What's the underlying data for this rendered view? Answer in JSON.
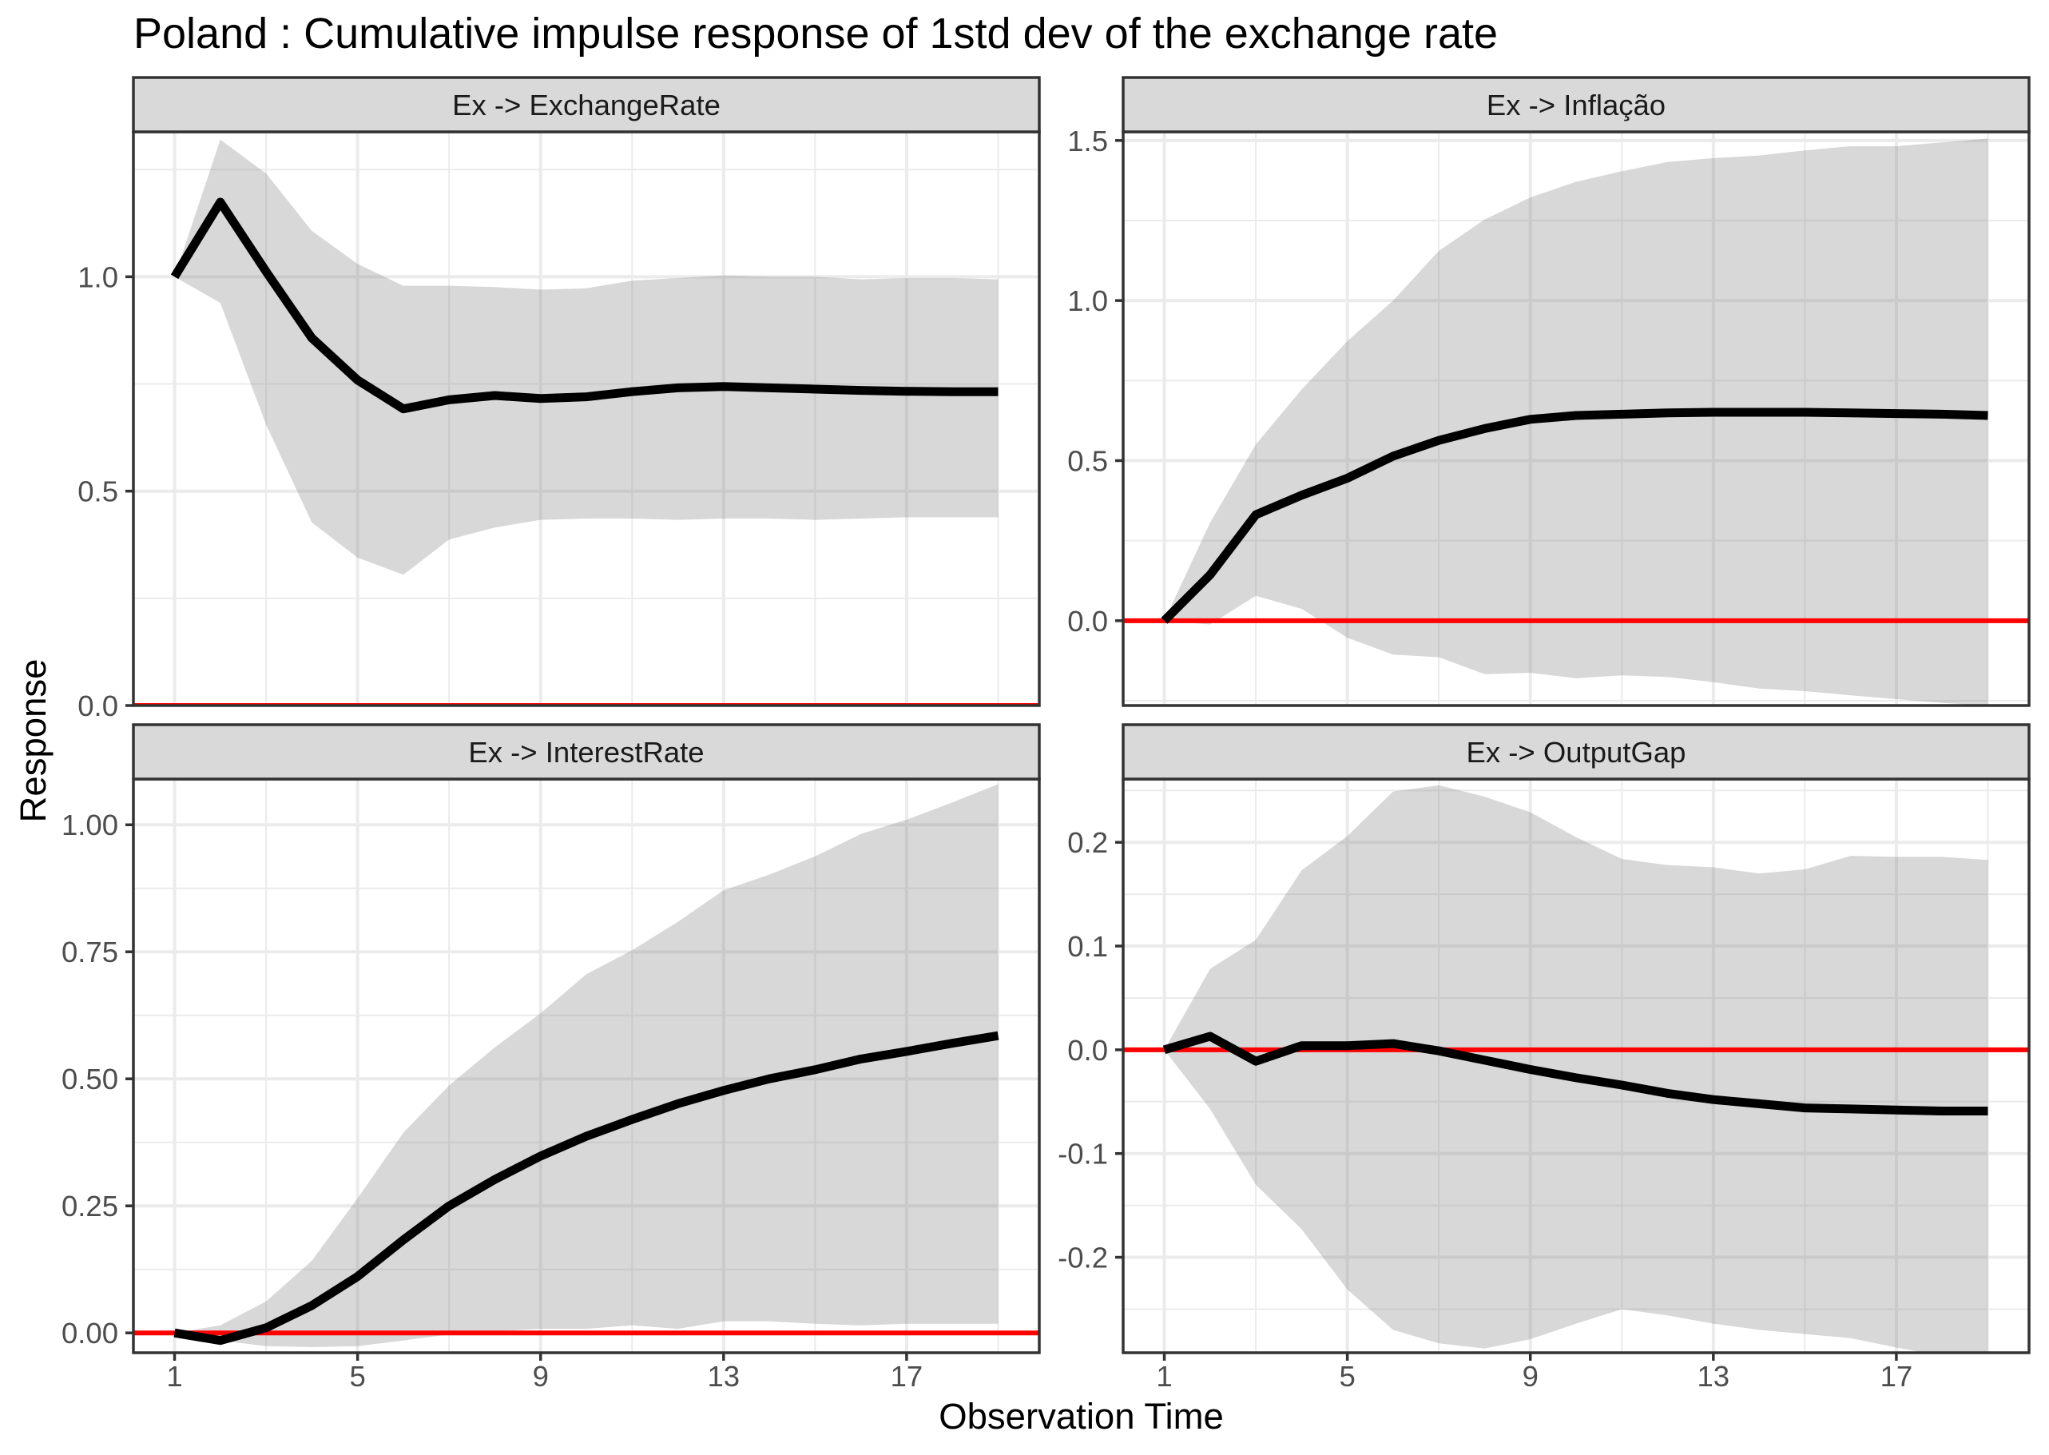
{
  "chart_data": {
    "type": "line",
    "title": "Poland : Cumulative impulse response of 1std dev of the exchange rate",
    "xlabel": "Observation Time",
    "ylabel": "Response",
    "x": [
      1,
      2,
      3,
      4,
      5,
      6,
      7,
      8,
      9,
      10,
      11,
      12,
      13,
      14,
      15,
      16,
      17,
      18,
      19
    ],
    "xlim": [
      0.1,
      19.9
    ],
    "xticks": [
      1,
      5,
      9,
      13,
      17
    ],
    "grid": true,
    "legend": "none",
    "colors": {
      "response_line": "#000000",
      "band": "#7F7F7F",
      "reference_line": "#FF0000"
    },
    "panels": [
      {
        "strip": "Ex -> ExchangeRate",
        "ylim": [
          0.0,
          1.338
        ],
        "yticks": [
          "0.0",
          "0.5",
          "1.0"
        ],
        "hline": 0,
        "response": [
          1.0,
          1.174,
          1.012,
          0.857,
          0.759,
          0.692,
          0.713,
          0.723,
          0.716,
          0.72,
          0.732,
          0.741,
          0.744,
          0.741,
          0.738,
          0.735,
          0.733,
          0.732,
          0.732
        ],
        "upper": [
          1.0,
          1.32,
          1.241,
          1.107,
          1.03,
          0.979,
          0.979,
          0.976,
          0.97,
          0.973,
          0.991,
          0.997,
          1.003,
          1.0,
          1.0,
          0.994,
          0.997,
          0.997,
          0.994
        ],
        "lower": [
          1.0,
          0.939,
          0.655,
          0.427,
          0.345,
          0.305,
          0.387,
          0.415,
          0.433,
          0.436,
          0.436,
          0.433,
          0.436,
          0.436,
          0.433,
          0.436,
          0.439,
          0.439,
          0.439
        ]
      },
      {
        "strip": "Ex -> Inflação",
        "ylim": [
          -0.265,
          1.527
        ],
        "yticks": [
          "0.0",
          "0.5",
          "1.0",
          "1.5"
        ],
        "hline": 0,
        "response": [
          0.0,
          0.143,
          0.331,
          0.392,
          0.445,
          0.514,
          0.563,
          0.6,
          0.629,
          0.641,
          0.645,
          0.649,
          0.651,
          0.651,
          0.651,
          0.649,
          0.647,
          0.645,
          0.641
        ],
        "upper": [
          0.0,
          0.306,
          0.551,
          0.722,
          0.873,
          1.0,
          1.155,
          1.253,
          1.322,
          1.371,
          1.404,
          1.433,
          1.445,
          1.453,
          1.469,
          1.482,
          1.482,
          1.494,
          1.506
        ],
        "lower": [
          0.0,
          -0.012,
          0.078,
          0.037,
          -0.053,
          -0.106,
          -0.114,
          -0.167,
          -0.163,
          -0.18,
          -0.171,
          -0.176,
          -0.192,
          -0.212,
          -0.22,
          -0.233,
          -0.245,
          -0.257,
          -0.265
        ]
      },
      {
        "strip": "Ex -> InterestRate",
        "ylim": [
          -0.039,
          1.09
        ],
        "yticks": [
          "0.00",
          "0.25",
          "0.50",
          "0.75",
          "1.00"
        ],
        "hline": 0,
        "response": [
          0.0,
          -0.015,
          0.01,
          0.054,
          0.111,
          0.183,
          0.25,
          0.302,
          0.348,
          0.387,
          0.42,
          0.451,
          0.477,
          0.5,
          0.518,
          0.539,
          0.554,
          0.57,
          0.585
        ],
        "upper": [
          0.0,
          0.015,
          0.062,
          0.142,
          0.265,
          0.394,
          0.487,
          0.562,
          0.629,
          0.706,
          0.753,
          0.809,
          0.871,
          0.902,
          0.938,
          0.982,
          1.01,
          1.044,
          1.08
        ],
        "lower": [
          0.0,
          -0.015,
          -0.026,
          -0.028,
          -0.026,
          -0.015,
          -0.003,
          0.003,
          0.008,
          0.008,
          0.015,
          0.008,
          0.023,
          0.023,
          0.018,
          0.015,
          0.018,
          0.018,
          0.018
        ]
      },
      {
        "strip": "Ex -> OutputGap",
        "ylim": [
          -0.292,
          0.261
        ],
        "yticks": [
          "-0.2",
          "-0.1",
          "0.0",
          "0.1",
          "0.2"
        ],
        "hline": 0,
        "response": [
          0.0,
          0.013,
          -0.011,
          0.004,
          0.004,
          0.006,
          -0.001,
          -0.01,
          -0.019,
          -0.027,
          -0.034,
          -0.042,
          -0.048,
          -0.052,
          -0.056,
          -0.057,
          -0.058,
          -0.059,
          -0.059
        ],
        "upper": [
          0.0,
          0.078,
          0.106,
          0.173,
          0.206,
          0.249,
          0.255,
          0.244,
          0.229,
          0.205,
          0.184,
          0.178,
          0.176,
          0.17,
          0.174,
          0.187,
          0.186,
          0.186,
          0.183
        ],
        "lower": [
          0.0,
          -0.057,
          -0.13,
          -0.173,
          -0.231,
          -0.27,
          -0.283,
          -0.288,
          -0.279,
          -0.264,
          -0.25,
          -0.256,
          -0.264,
          -0.27,
          -0.274,
          -0.278,
          -0.287,
          -0.295,
          -0.299
        ]
      }
    ]
  }
}
